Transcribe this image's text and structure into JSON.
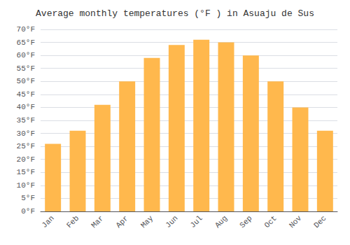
{
  "chart_data": {
    "type": "bar",
    "title": "Average monthly temperatures (°F ) in Asuaju de Sus",
    "categories": [
      "Jan",
      "Feb",
      "Mar",
      "Apr",
      "May",
      "Jun",
      "Jul",
      "Aug",
      "Sep",
      "Oct",
      "Nov",
      "Dec"
    ],
    "values": [
      26,
      31,
      41,
      50,
      59,
      64,
      66,
      65,
      60,
      50,
      40,
      31
    ],
    "color": "#FFB84D",
    "ylim": [
      0,
      70
    ],
    "yticks": [
      {
        "value": 0,
        "label": "0°F"
      },
      {
        "value": 5,
        "label": "5°F"
      },
      {
        "value": 10,
        "label": "10°F"
      },
      {
        "value": 15,
        "label": "15°F"
      },
      {
        "value": 20,
        "label": "20°F"
      },
      {
        "value": 25,
        "label": "25°F"
      },
      {
        "value": 30,
        "label": "30°F"
      },
      {
        "value": 35,
        "label": "35°F"
      },
      {
        "value": 40,
        "label": "40°F"
      },
      {
        "value": 45,
        "label": "45°F"
      },
      {
        "value": 50,
        "label": "50°F"
      },
      {
        "value": 55,
        "label": "55°F"
      },
      {
        "value": 60,
        "label": "60°F"
      },
      {
        "value": 65,
        "label": "65°F"
      },
      {
        "value": 70,
        "label": "70°F"
      }
    ],
    "grid": true
  }
}
